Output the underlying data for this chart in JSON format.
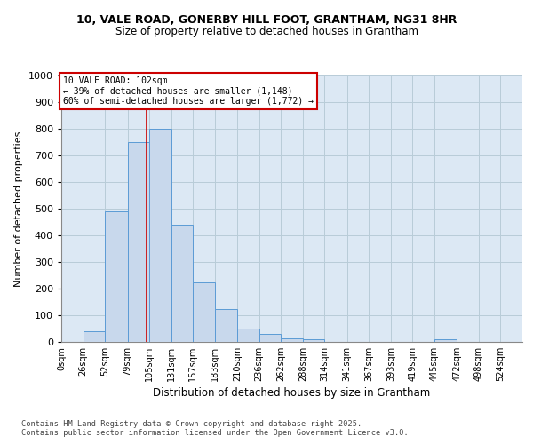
{
  "title_line1": "10, VALE ROAD, GONERBY HILL FOOT, GRANTHAM, NG31 8HR",
  "title_line2": "Size of property relative to detached houses in Grantham",
  "xlabel": "Distribution of detached houses by size in Grantham",
  "ylabel": "Number of detached properties",
  "bar_color": "#c8d8ec",
  "bar_edge_color": "#5b9bd5",
  "categories": [
    "0sqm",
    "26sqm",
    "52sqm",
    "79sqm",
    "105sqm",
    "131sqm",
    "157sqm",
    "183sqm",
    "210sqm",
    "236sqm",
    "262sqm",
    "288sqm",
    "314sqm",
    "341sqm",
    "367sqm",
    "393sqm",
    "419sqm",
    "445sqm",
    "472sqm",
    "498sqm",
    "524sqm"
  ],
  "bar_heights": [
    0,
    40,
    490,
    750,
    800,
    440,
    225,
    125,
    50,
    30,
    15,
    10,
    0,
    0,
    0,
    0,
    0,
    10,
    0,
    0,
    0
  ],
  "bin_edges": [
    0,
    26,
    52,
    79,
    105,
    131,
    157,
    183,
    210,
    236,
    262,
    288,
    314,
    341,
    367,
    393,
    419,
    445,
    472,
    498,
    524,
    550
  ],
  "ylim": [
    0,
    1000
  ],
  "yticks": [
    0,
    100,
    200,
    300,
    400,
    500,
    600,
    700,
    800,
    900,
    1000
  ],
  "red_line_x": 102,
  "annotation_text": "10 VALE ROAD: 102sqm\n← 39% of detached houses are smaller (1,148)\n60% of semi-detached houses are larger (1,772) →",
  "annotation_box_facecolor": "#ffffff",
  "annotation_box_edgecolor": "#cc0000",
  "grid_color": "#b8ccd8",
  "background_color": "#dce8f4",
  "footer_text": "Contains HM Land Registry data © Crown copyright and database right 2025.\nContains public sector information licensed under the Open Government Licence v3.0."
}
